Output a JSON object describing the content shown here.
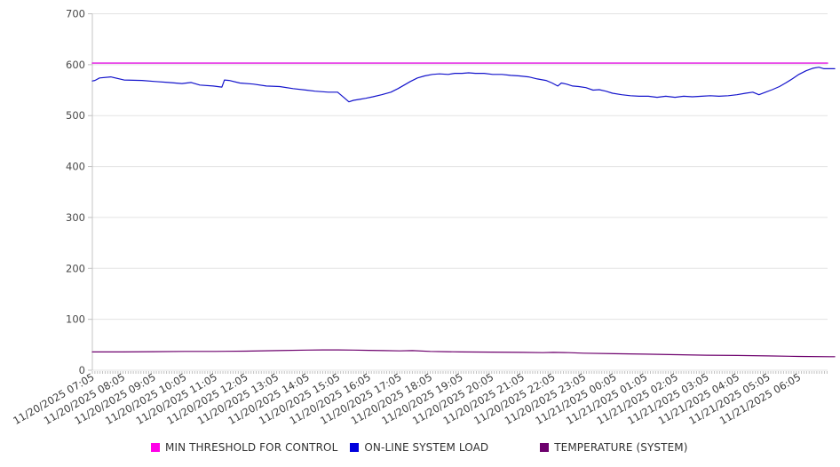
{
  "legend": {
    "items": [
      {
        "label": "MIN THRESHOLD FOR CONTROL",
        "color": "#ff00e8"
      },
      {
        "label": "ON-LINE SYSTEM LOAD",
        "color": "#0000dd"
      },
      {
        "label": "TEMPERATURE (SYSTEM)",
        "color": "#6d006d"
      }
    ]
  },
  "chart_data": {
    "type": "line",
    "title": "",
    "xlabel": "",
    "ylabel": "",
    "ylim": [
      0,
      700
    ],
    "y_ticks": [
      0,
      100,
      200,
      300,
      400,
      500,
      600,
      700
    ],
    "grid": "horizontal",
    "legend_position": "bottom",
    "x_minutes_span": 1436,
    "x_minor_tick_every_minutes": 5,
    "x_tick_every_minutes": 60,
    "x_tick_labels": [
      "11/20/2025 07:05",
      "11/20/2025 08:05",
      "11/20/2025 09:05",
      "11/20/2025 10:05",
      "11/20/2025 11:05",
      "11/20/2025 12:05",
      "11/20/2025 13:05",
      "11/20/2025 14:05",
      "11/20/2025 15:05",
      "11/20/2025 16:05",
      "11/20/2025 17:05",
      "11/20/2025 18:05",
      "11/20/2025 19:05",
      "11/20/2025 20:05",
      "11/20/2025 21:05",
      "11/20/2025 22:05",
      "11/20/2025 23:05",
      "11/21/2025 00:05",
      "11/21/2025 01:05",
      "11/21/2025 02:05",
      "11/21/2025 03:05",
      "11/21/2025 04:05",
      "11/21/2025 05:05",
      "11/21/2025 06:05"
    ],
    "series": [
      {
        "name": "MIN THRESHOLD FOR CONTROL",
        "color": "#e010e0",
        "width": 1.4,
        "points": [
          [
            0,
            603
          ],
          [
            1436,
            603
          ]
        ]
      },
      {
        "name": "ON-LINE SYSTEM LOAD",
        "color": "#1414cc",
        "width": 1.2,
        "points": [
          [
            0,
            568
          ],
          [
            5,
            569
          ],
          [
            14,
            574
          ],
          [
            36,
            576
          ],
          [
            62,
            570
          ],
          [
            97,
            569
          ],
          [
            123,
            567
          ],
          [
            149,
            565
          ],
          [
            175,
            563
          ],
          [
            193,
            565
          ],
          [
            210,
            560
          ],
          [
            236,
            558
          ],
          [
            253,
            556
          ],
          [
            258,
            570
          ],
          [
            267,
            569
          ],
          [
            288,
            564
          ],
          [
            314,
            562
          ],
          [
            340,
            558
          ],
          [
            366,
            557
          ],
          [
            392,
            553
          ],
          [
            418,
            550
          ],
          [
            435,
            548
          ],
          [
            461,
            546
          ],
          [
            479,
            546
          ],
          [
            493,
            534
          ],
          [
            501,
            527
          ],
          [
            510,
            530
          ],
          [
            522,
            532
          ],
          [
            534,
            534
          ],
          [
            548,
            537
          ],
          [
            565,
            541
          ],
          [
            583,
            546
          ],
          [
            597,
            553
          ],
          [
            609,
            560
          ],
          [
            621,
            567
          ],
          [
            635,
            574
          ],
          [
            649,
            578
          ],
          [
            664,
            581
          ],
          [
            678,
            582
          ],
          [
            695,
            581
          ],
          [
            708,
            583
          ],
          [
            722,
            583
          ],
          [
            735,
            584
          ],
          [
            748,
            583
          ],
          [
            765,
            583
          ],
          [
            782,
            581
          ],
          [
            800,
            581
          ],
          [
            817,
            579
          ],
          [
            834,
            578
          ],
          [
            852,
            576
          ],
          [
            869,
            572
          ],
          [
            886,
            569
          ],
          [
            898,
            564
          ],
          [
            909,
            558
          ],
          [
            916,
            564
          ],
          [
            926,
            562
          ],
          [
            938,
            558
          ],
          [
            950,
            557
          ],
          [
            964,
            555
          ],
          [
            978,
            550
          ],
          [
            990,
            551
          ],
          [
            1003,
            548
          ],
          [
            1016,
            544
          ],
          [
            1034,
            541
          ],
          [
            1051,
            539
          ],
          [
            1068,
            538
          ],
          [
            1086,
            538
          ],
          [
            1103,
            536
          ],
          [
            1120,
            538
          ],
          [
            1138,
            536
          ],
          [
            1155,
            538
          ],
          [
            1172,
            537
          ],
          [
            1190,
            538
          ],
          [
            1207,
            539
          ],
          [
            1224,
            538
          ],
          [
            1242,
            539
          ],
          [
            1259,
            541
          ],
          [
            1276,
            544
          ],
          [
            1290,
            546
          ],
          [
            1302,
            541
          ],
          [
            1315,
            546
          ],
          [
            1328,
            551
          ],
          [
            1342,
            557
          ],
          [
            1354,
            564
          ],
          [
            1367,
            572
          ],
          [
            1380,
            581
          ],
          [
            1394,
            588
          ],
          [
            1407,
            593
          ],
          [
            1419,
            595
          ],
          [
            1429,
            592
          ],
          [
            1441,
            592
          ],
          [
            1450,
            592
          ]
        ]
      },
      {
        "name": "TEMPERATURE (SYSTEM)",
        "color": "#6d006d",
        "width": 1.2,
        "points": [
          [
            0,
            36
          ],
          [
            60,
            36
          ],
          [
            120,
            36.5
          ],
          [
            180,
            37
          ],
          [
            240,
            37
          ],
          [
            300,
            37.5
          ],
          [
            360,
            38.5
          ],
          [
            420,
            39.5
          ],
          [
            450,
            40
          ],
          [
            480,
            40
          ],
          [
            510,
            39.5
          ],
          [
            540,
            39
          ],
          [
            570,
            38.5
          ],
          [
            600,
            38
          ],
          [
            625,
            38.5
          ],
          [
            660,
            37
          ],
          [
            690,
            36.5
          ],
          [
            720,
            36
          ],
          [
            780,
            35.5
          ],
          [
            840,
            35
          ],
          [
            880,
            34.5
          ],
          [
            900,
            35
          ],
          [
            930,
            34.5
          ],
          [
            960,
            33.5
          ],
          [
            1020,
            32.5
          ],
          [
            1080,
            31.5
          ],
          [
            1140,
            30.5
          ],
          [
            1200,
            29.5
          ],
          [
            1260,
            29
          ],
          [
            1320,
            28
          ],
          [
            1380,
            27
          ],
          [
            1440,
            26.5
          ],
          [
            1450,
            26.5
          ]
        ]
      }
    ],
    "style": {
      "grid_color": "#e3e3e3",
      "axis_color": "#c4c4c4",
      "tick_color": "#c0c0c0",
      "y_label_color": "#4a4a4a",
      "x_label_color": "#3c3c3c"
    }
  }
}
